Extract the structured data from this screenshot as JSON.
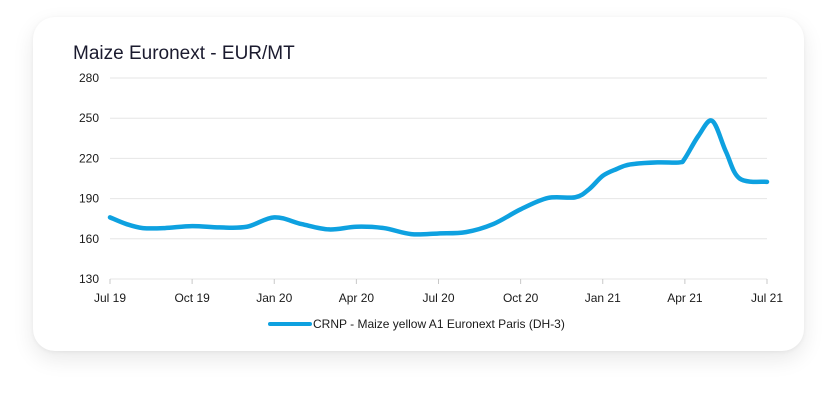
{
  "chart_data": {
    "type": "line",
    "title": "Maize Euronext - EUR/MT",
    "xlabel": "",
    "ylabel": "",
    "ylim": [
      130,
      280
    ],
    "yticks": [
      280,
      250,
      220,
      190,
      160,
      130
    ],
    "x_tick_labels": [
      "Jul 19",
      "Oct 19",
      "Jan 20",
      "Apr 20",
      "Jul 20",
      "Oct 20",
      "Jan 21",
      "Apr 21",
      "Jul 21"
    ],
    "x_range_months": [
      0,
      24
    ],
    "grid": true,
    "legend_position": "bottom-center",
    "series": [
      {
        "name": "CRNP - Maize yellow A1 Euronext Paris (DH-3)",
        "color": "#0ea1e0",
        "x_months": [
          0,
          0.6,
          1.2,
          2,
          3,
          4,
          5,
          6,
          7,
          8,
          9,
          10,
          11,
          12,
          13,
          14,
          15,
          16,
          17,
          17.5,
          18,
          18.5,
          19,
          20,
          20.8,
          21,
          21.5,
          22,
          22.5,
          23,
          24
        ],
        "values": [
          176,
          171,
          168,
          168,
          169.5,
          168.5,
          169,
          176,
          171,
          167,
          169,
          168,
          163.5,
          164,
          165,
          171,
          182,
          190.5,
          191,
          197,
          207,
          212,
          215.5,
          217,
          217,
          220,
          237,
          248,
          225,
          205,
          202.5
        ]
      }
    ]
  }
}
